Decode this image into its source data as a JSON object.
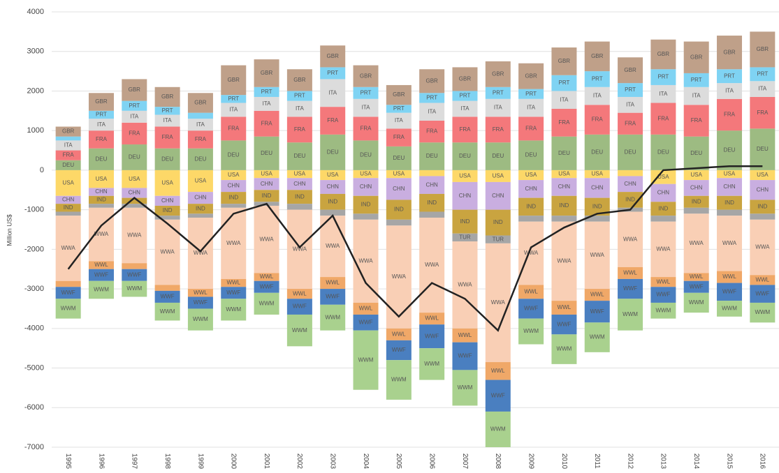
{
  "chart_data": {
    "type": "stacked-bar-line",
    "y_label": "Million US$",
    "categories": [
      "1995",
      "1996",
      "1997",
      "1998",
      "1999",
      "2000",
      "2001",
      "2002",
      "2003",
      "2004",
      "2005",
      "2006",
      "2007",
      "2008",
      "2009",
      "2010",
      "2011",
      "2012",
      "2013",
      "2014",
      "2015",
      "2016"
    ],
    "ylim": [
      -7000,
      4000
    ],
    "yticks": [
      -7000,
      -6000,
      -5000,
      -4000,
      -3000,
      -2000,
      -1000,
      0,
      1000,
      2000,
      3000,
      4000
    ],
    "grid": true,
    "series": [
      {
        "name": "DEU",
        "color": "#9dbb82",
        "values": [
          250,
          550,
          650,
          550,
          550,
          750,
          850,
          700,
          900,
          750,
          600,
          700,
          700,
          700,
          750,
          850,
          900,
          900,
          900,
          850,
          1000,
          1050
        ]
      },
      {
        "name": "FRA",
        "color": "#f4787b",
        "values": [
          250,
          450,
          550,
          550,
          450,
          600,
          650,
          650,
          700,
          600,
          450,
          550,
          650,
          650,
          600,
          700,
          750,
          550,
          800,
          800,
          800,
          800
        ]
      },
      {
        "name": "ITA",
        "color": "#dcdcdc",
        "values": [
          250,
          300,
          300,
          300,
          300,
          350,
          350,
          400,
          700,
          450,
          400,
          450,
          400,
          450,
          450,
          450,
          450,
          400,
          450,
          450,
          400,
          400
        ]
      },
      {
        "name": "PRT",
        "color": "#7fd3f3",
        "values": [
          100,
          200,
          250,
          200,
          150,
          200,
          250,
          250,
          300,
          300,
          200,
          250,
          250,
          300,
          250,
          400,
          400,
          350,
          400,
          350,
          350,
          350
        ]
      },
      {
        "name": "GBR",
        "color": "#bfa089",
        "values": [
          250,
          450,
          550,
          500,
          500,
          750,
          700,
          550,
          550,
          550,
          500,
          600,
          600,
          650,
          650,
          700,
          750,
          650,
          750,
          800,
          850,
          900
        ]
      },
      {
        "name": "USA",
        "color": "#fdd868",
        "values": [
          -650,
          -450,
          -450,
          -650,
          -550,
          -250,
          -200,
          -200,
          -250,
          -200,
          -200,
          -150,
          -300,
          -300,
          -250,
          -200,
          -200,
          -150,
          -350,
          -250,
          -200,
          -250
        ]
      },
      {
        "name": "CHN",
        "color": "#c9aee0",
        "values": [
          -200,
          -200,
          -250,
          -250,
          -300,
          -300,
          -300,
          -300,
          -350,
          -450,
          -550,
          -450,
          -700,
          -700,
          -450,
          -450,
          -500,
          -400,
          -450,
          -400,
          -450,
          -500
        ]
      },
      {
        "name": "IND",
        "color": "#c9a440",
        "values": [
          -200,
          -200,
          -150,
          -250,
          -250,
          -300,
          -300,
          -350,
          -400,
          -450,
          -500,
          -450,
          -600,
          -650,
          -450,
          -500,
          -450,
          -400,
          -350,
          -300,
          -350,
          -350
        ]
      },
      {
        "name": "TUR",
        "color": "#a6a6a6",
        "values": [
          -100,
          -100,
          -100,
          -100,
          -100,
          -100,
          -100,
          -150,
          -150,
          -150,
          -150,
          -150,
          -200,
          -200,
          -150,
          -150,
          -150,
          -100,
          -150,
          -150,
          -150,
          -150
        ]
      },
      {
        "name": "WWA",
        "color": "#f9cfb5",
        "values": [
          -1650,
          -1350,
          -1400,
          -1650,
          -1800,
          -1800,
          -1700,
          -2000,
          -1550,
          -2100,
          -2600,
          -2400,
          -2200,
          -3000,
          -1600,
          -2000,
          -1700,
          -1400,
          -1400,
          -1500,
          -1400,
          -1400
        ]
      },
      {
        "name": "WWL",
        "color": "#f0a868",
        "values": [
          -150,
          -200,
          -150,
          -150,
          -200,
          -200,
          -200,
          -250,
          -300,
          -300,
          -300,
          -300,
          -350,
          -450,
          -350,
          -350,
          -300,
          -300,
          -250,
          -200,
          -300,
          -250
        ]
      },
      {
        "name": "WWF",
        "color": "#4a7fc0",
        "values": [
          -300,
          -300,
          -300,
          -300,
          -300,
          -300,
          -300,
          -400,
          -400,
          -400,
          -500,
          -600,
          -700,
          -800,
          -500,
          -500,
          -550,
          -500,
          -400,
          -300,
          -450,
          -450
        ]
      },
      {
        "name": "WWM",
        "color": "#a9d18e",
        "values": [
          -500,
          -450,
          -400,
          -450,
          -550,
          -550,
          -550,
          -800,
          -650,
          -1500,
          -1000,
          -800,
          -900,
          -900,
          -650,
          -750,
          -750,
          -800,
          -400,
          -500,
          -400,
          -500
        ]
      }
    ],
    "net_line": {
      "color": "#222222",
      "values": [
        -2500,
        -1400,
        -700,
        -1350,
        -2050,
        -1100,
        -850,
        -1950,
        -1150,
        -2850,
        -3700,
        -2850,
        -3250,
        -4050,
        -1950,
        -1450,
        -1100,
        -1000,
        0,
        50,
        100,
        100
      ]
    }
  }
}
